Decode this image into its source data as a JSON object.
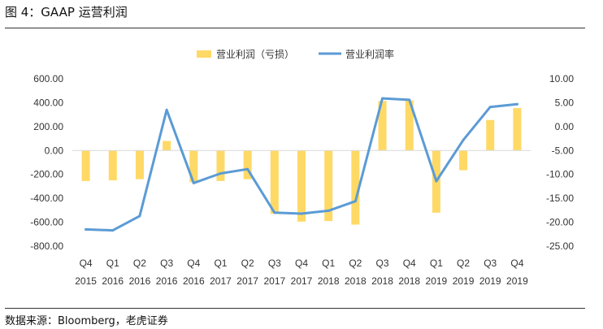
{
  "figure": {
    "title": "图 4：GAAP  运营利润",
    "source": "数据来源：Bloomberg，老虎证券"
  },
  "chart_data": {
    "type": "bar",
    "categories": [
      [
        "Q4",
        "2015"
      ],
      [
        "Q1",
        "2016"
      ],
      [
        "Q2",
        "2016"
      ],
      [
        "Q3",
        "2016"
      ],
      [
        "Q4",
        "2016"
      ],
      [
        "Q1",
        "2017"
      ],
      [
        "Q2",
        "2017"
      ],
      [
        "Q3",
        "2017"
      ],
      [
        "Q4",
        "2017"
      ],
      [
        "Q1",
        "2018"
      ],
      [
        "Q2",
        "2018"
      ],
      [
        "Q3",
        "2018"
      ],
      [
        "Q4",
        "2018"
      ],
      [
        "Q1",
        "2019"
      ],
      [
        "Q2",
        "2019"
      ],
      [
        "Q3",
        "2019"
      ],
      [
        "Q4",
        "2019"
      ]
    ],
    "series": [
      {
        "name": "营业利润（亏损）",
        "type": "bar",
        "axis": "left",
        "color": "#FFD966",
        "values": [
          -255,
          -250,
          -240,
          80,
          -265,
          -255,
          -240,
          -530,
          -595,
          -590,
          -620,
          415,
          420,
          -520,
          -165,
          255,
          355
        ]
      },
      {
        "name": "营业利润率",
        "type": "line",
        "axis": "right",
        "color": "#5B9BD5",
        "values": [
          -21.5,
          -21.7,
          -18.7,
          3.5,
          -11.8,
          -9.8,
          -8.9,
          -18.0,
          -18.2,
          -17.6,
          -15.6,
          5.9,
          5.6,
          -11.4,
          -2.8,
          4.1,
          4.7
        ]
      }
    ],
    "y_left": {
      "min": -800,
      "max": 600,
      "step": 200,
      "tick_labels": [
        "600.00",
        "400.00",
        "200.00",
        "0.00",
        "-200.00",
        "-400.00",
        "-600.00",
        "-800.00"
      ]
    },
    "y_right": {
      "min": -25,
      "max": 10,
      "step": 5,
      "tick_labels": [
        "10.00",
        "5.00",
        "0.00",
        "-5.00",
        "-10.00",
        "-15.00",
        "-20.00",
        "-25.00"
      ]
    },
    "grid": false,
    "legend_position": "top-center"
  }
}
